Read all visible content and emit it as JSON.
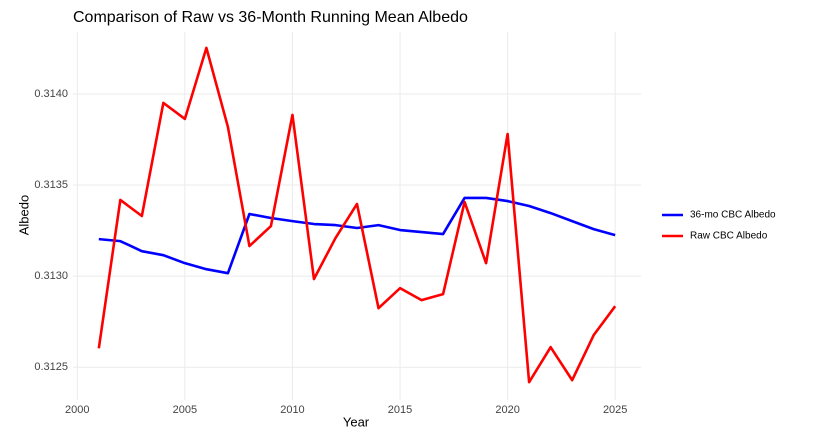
{
  "chart_data": {
    "type": "line",
    "title": "Comparison of Raw vs 36-Month Running Mean Albedo",
    "x_label": "Year",
    "y_label": "Albedo",
    "x": [
      2001,
      2002,
      2003,
      2004,
      2005,
      2006,
      2007,
      2008,
      2009,
      2010,
      2011,
      2012,
      2013,
      2014,
      2015,
      2016,
      2017,
      2018,
      2019,
      2020,
      2021,
      2022,
      2023,
      2024,
      2025
    ],
    "series": [
      {
        "name": "36-mo CBC Albedo",
        "color": "#0000ff",
        "values": [
          0.313203,
          0.313192,
          0.313137,
          0.313115,
          0.313071,
          0.313038,
          0.313016,
          0.313341,
          0.313319,
          0.313302,
          0.313286,
          0.31328,
          0.313264,
          0.31328,
          0.313253,
          0.313242,
          0.313231,
          0.313429,
          0.313429,
          0.313412,
          0.313385,
          0.313346,
          0.313302,
          0.313258,
          0.313225
        ]
      },
      {
        "name": "Raw CBC Albedo",
        "color": "#ff0000",
        "values": [
          0.312604,
          0.313418,
          0.31333,
          0.313951,
          0.313863,
          0.314253,
          0.313819,
          0.313165,
          0.313275,
          0.313885,
          0.312984,
          0.313209,
          0.313396,
          0.312824,
          0.312934,
          0.312868,
          0.312901,
          0.313407,
          0.313071,
          0.31378,
          0.312418,
          0.31261,
          0.312429,
          0.312676,
          0.312835
        ]
      }
    ],
    "xlim": [
      1999.8,
      2026.2
    ],
    "xticks": [
      2000,
      2005,
      2010,
      2015,
      2020,
      2025
    ],
    "ylim": [
      0.31232,
      0.31434
    ],
    "yticks": [
      0.3125,
      {
        "value": 0.313,
        "label": "0.3130"
      },
      0.3135,
      {
        "value": 0.314,
        "label": "0.3140"
      }
    ],
    "grid": true,
    "legend": "right"
  }
}
